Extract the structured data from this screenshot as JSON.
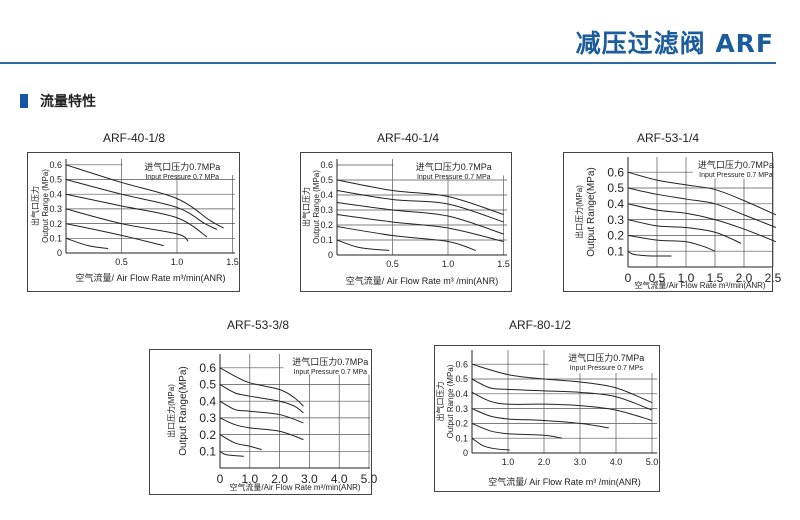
{
  "header": {
    "title": "减压过滤阀 ARF",
    "accent_color": "#1b5c9c"
  },
  "section": {
    "title": "流量特性",
    "marker_color": "#1456a5"
  },
  "chart_data": [
    {
      "type": "line",
      "title": "ARF-40-1/8",
      "annotation": [
        "进气口压力0.7MPa",
        "Input Pressure 0.7 MPa"
      ],
      "xlabel": "空气流量/ Air Flow Rate m³/min(ANR)",
      "ylabel": [
        "出气口压力",
        "Output Range (MPa)"
      ],
      "xlim": [
        0,
        1.5
      ],
      "ylim": [
        0,
        0.6
      ],
      "grid": true,
      "xticks": [
        {
          "v": 0.5,
          "label": "0.5"
        },
        {
          "v": 1.0,
          "label": "1.0"
        },
        {
          "v": 1.5,
          "label": "1.5"
        }
      ],
      "yticks": [
        {
          "v": 0,
          "label": "0"
        },
        {
          "v": 0.1,
          "label": "0.1"
        },
        {
          "v": 0.2,
          "label": "0.2"
        },
        {
          "v": 0.3,
          "label": "0.3"
        },
        {
          "v": 0.4,
          "label": "0.4"
        },
        {
          "v": 0.5,
          "label": "0.5"
        },
        {
          "v": 0.6,
          "label": "0.6"
        }
      ],
      "series": [
        {
          "values": [
            [
              0,
              0.6
            ],
            [
              0.5,
              0.48
            ],
            [
              1.0,
              0.37
            ],
            [
              1.3,
              0.22
            ],
            [
              1.42,
              0.17
            ]
          ]
        },
        {
          "values": [
            [
              0,
              0.5
            ],
            [
              0.5,
              0.4
            ],
            [
              1.0,
              0.31
            ],
            [
              1.25,
              0.2
            ],
            [
              1.36,
              0.16
            ]
          ]
        },
        {
          "values": [
            [
              0,
              0.4
            ],
            [
              0.5,
              0.32
            ],
            [
              1.0,
              0.24
            ],
            [
              1.27,
              0.11
            ]
          ]
        },
        {
          "values": [
            [
              0,
              0.3
            ],
            [
              0.5,
              0.2
            ],
            [
              1.0,
              0.13
            ],
            [
              1.1,
              0.08
            ]
          ]
        },
        {
          "values": [
            [
              0,
              0.2
            ],
            [
              0.5,
              0.12
            ],
            [
              0.88,
              0.05
            ]
          ]
        },
        {
          "values": [
            [
              0,
              0.1
            ],
            [
              0.2,
              0.05
            ],
            [
              0.38,
              0.03
            ]
          ]
        }
      ]
    },
    {
      "type": "line",
      "title": "ARF-40-1/4",
      "annotation": [
        "进气口压力0.7MPa",
        "Input Pressure 0.7 MPa"
      ],
      "xlabel": "空气流量/ Air Flow Rate m³ /min(ANR)",
      "ylabel": [
        "出气口压力",
        "Output Range (MPa)"
      ],
      "xlim": [
        0,
        1.5
      ],
      "ylim": [
        0,
        0.6
      ],
      "grid": true,
      "xticks": [
        {
          "v": 0.5,
          "label": "0.5"
        },
        {
          "v": 1.0,
          "label": "1.0"
        },
        {
          "v": 1.5,
          "label": "1.5"
        }
      ],
      "yticks": [
        {
          "v": 0,
          "label": "0"
        },
        {
          "v": 0.1,
          "label": "0.1"
        },
        {
          "v": 0.2,
          "label": "0.2"
        },
        {
          "v": 0.3,
          "label": "0.3"
        },
        {
          "v": 0.4,
          "label": "0.4"
        },
        {
          "v": 0.5,
          "label": "0.5"
        },
        {
          "v": 0.6,
          "label": "0.6"
        }
      ],
      "series": [
        {
          "values": [
            [
              0,
              0.5
            ],
            [
              0.5,
              0.43
            ],
            [
              1.0,
              0.39
            ],
            [
              1.5,
              0.27
            ]
          ]
        },
        {
          "values": [
            [
              0,
              0.43
            ],
            [
              0.5,
              0.37
            ],
            [
              1.0,
              0.34
            ],
            [
              1.5,
              0.22
            ]
          ]
        },
        {
          "values": [
            [
              0,
              0.35
            ],
            [
              0.5,
              0.3
            ],
            [
              1.0,
              0.26
            ],
            [
              1.5,
              0.14
            ]
          ]
        },
        {
          "values": [
            [
              0,
              0.27
            ],
            [
              0.5,
              0.22
            ],
            [
              1.0,
              0.18
            ],
            [
              1.5,
              0.09
            ]
          ]
        },
        {
          "values": [
            [
              0,
              0.19
            ],
            [
              0.5,
              0.13
            ],
            [
              1.0,
              0.09
            ],
            [
              1.25,
              0.03
            ]
          ]
        },
        {
          "values": [
            [
              0,
              0.1
            ],
            [
              0.2,
              0.05
            ],
            [
              0.47,
              0.03
            ]
          ]
        }
      ]
    },
    {
      "type": "line",
      "title": "ARF-53-1/4",
      "annotation": [
        "进气口压力0.7MPa",
        "Input Pressure 0.7 MPa"
      ],
      "xlabel": "空气流量/Air Flow Rate m³/min(ANR)",
      "ylabel": [
        "出口压力(MPa)",
        "Output Range(MPa)"
      ],
      "xlim": [
        0,
        2.5
      ],
      "ylim": [
        0,
        0.6
      ],
      "grid": true,
      "xticks": [
        {
          "v": 0,
          "label": "0"
        },
        {
          "v": 0.5,
          "label": "0.5"
        },
        {
          "v": 1.0,
          "label": "1.0"
        },
        {
          "v": 1.5,
          "label": "1.5"
        },
        {
          "v": 2.0,
          "label": "2.0"
        },
        {
          "v": 2.5,
          "label": "2.5"
        }
      ],
      "yticks": [
        {
          "v": 0.1,
          "label": "0.1"
        },
        {
          "v": 0.2,
          "label": "0.2"
        },
        {
          "v": 0.3,
          "label": "0.3"
        },
        {
          "v": 0.4,
          "label": "0.4"
        },
        {
          "v": 0.5,
          "label": "0.5"
        },
        {
          "v": 0.6,
          "label": "0.6"
        }
      ],
      "series": [
        {
          "values": [
            [
              0,
              0.6
            ],
            [
              0.5,
              0.55
            ],
            [
              1.0,
              0.52
            ],
            [
              1.5,
              0.49
            ],
            [
              2.0,
              0.42
            ],
            [
              2.55,
              0.33
            ]
          ]
        },
        {
          "values": [
            [
              0,
              0.5
            ],
            [
              0.5,
              0.46
            ],
            [
              1.0,
              0.43
            ],
            [
              1.5,
              0.4
            ],
            [
              2.0,
              0.33
            ],
            [
              2.55,
              0.25
            ]
          ]
        },
        {
          "values": [
            [
              0,
              0.4
            ],
            [
              0.5,
              0.36
            ],
            [
              1.0,
              0.34
            ],
            [
              1.5,
              0.3
            ],
            [
              2.0,
              0.24
            ],
            [
              2.55,
              0.16
            ]
          ]
        },
        {
          "values": [
            [
              0,
              0.3
            ],
            [
              0.5,
              0.26
            ],
            [
              1.0,
              0.25
            ],
            [
              1.5,
              0.22
            ],
            [
              1.95,
              0.15
            ]
          ]
        },
        {
          "values": [
            [
              0,
              0.2
            ],
            [
              0.5,
              0.17
            ],
            [
              1.0,
              0.16
            ],
            [
              1.3,
              0.13
            ],
            [
              1.5,
              0.1
            ]
          ]
        },
        {
          "values": [
            [
              0,
              0.1
            ],
            [
              0.1,
              0.08
            ],
            [
              0.4,
              0.07
            ],
            [
              0.75,
              0.07
            ]
          ]
        }
      ]
    },
    {
      "type": "line",
      "title": "ARF-53-3/8",
      "annotation": [
        "进气口压力0.7MPa",
        "Input Pressure 0.7 MPa"
      ],
      "xlabel": "空气流量/Air Flow Rate m³/min(ANR)",
      "ylabel": [
        "出口压力(MPa)",
        "Output Range(MPa)"
      ],
      "xlim": [
        0,
        5.0
      ],
      "ylim": [
        0,
        0.6
      ],
      "grid": true,
      "xticks": [
        {
          "v": 0,
          "label": "0"
        },
        {
          "v": 1.0,
          "label": "1.0"
        },
        {
          "v": 2.0,
          "label": "2.0"
        },
        {
          "v": 3.0,
          "label": "3.0"
        },
        {
          "v": 4.0,
          "label": "4.0"
        },
        {
          "v": 5.0,
          "label": "5.0"
        }
      ],
      "yticks": [
        {
          "v": 0.1,
          "label": "0.1"
        },
        {
          "v": 0.2,
          "label": "0.2"
        },
        {
          "v": 0.3,
          "label": "0.3"
        },
        {
          "v": 0.4,
          "label": "0.4"
        },
        {
          "v": 0.5,
          "label": "0.5"
        },
        {
          "v": 0.6,
          "label": "0.6"
        }
      ],
      "series": [
        {
          "values": [
            [
              0,
              0.6
            ],
            [
              0.5,
              0.55
            ],
            [
              1.0,
              0.51
            ],
            [
              2.0,
              0.47
            ],
            [
              2.5,
              0.42
            ],
            [
              2.8,
              0.37
            ]
          ]
        },
        {
          "values": [
            [
              0,
              0.5
            ],
            [
              0.5,
              0.45
            ],
            [
              1.0,
              0.43
            ],
            [
              2.0,
              0.4
            ],
            [
              2.5,
              0.37
            ],
            [
              2.8,
              0.33
            ]
          ]
        },
        {
          "values": [
            [
              0,
              0.4
            ],
            [
              0.5,
              0.35
            ],
            [
              1.0,
              0.34
            ],
            [
              2.0,
              0.32
            ],
            [
              2.8,
              0.27
            ]
          ]
        },
        {
          "values": [
            [
              0,
              0.3
            ],
            [
              0.5,
              0.26
            ],
            [
              1.0,
              0.24
            ],
            [
              2.0,
              0.22
            ],
            [
              2.8,
              0.17
            ]
          ]
        },
        {
          "values": [
            [
              0,
              0.2
            ],
            [
              0.5,
              0.15
            ],
            [
              1.0,
              0.13
            ],
            [
              1.4,
              0.11
            ]
          ]
        },
        {
          "values": [
            [
              0,
              0.1
            ],
            [
              0.2,
              0.08
            ],
            [
              0.8,
              0.07
            ]
          ]
        }
      ]
    },
    {
      "type": "line",
      "title": "ARF-80-1/2",
      "annotation": [
        "进气口压力0.7MPa",
        "Input Pressure 0.7 MPs"
      ],
      "xlabel": "空气流量/ Air Flow Rate m³ /min(ANR)",
      "ylabel": [
        "出气口压力",
        "Output Range (MPa)"
      ],
      "xlim": [
        0,
        5.0
      ],
      "ylim": [
        0,
        0.6
      ],
      "grid": true,
      "xticks": [
        {
          "v": 1.0,
          "label": "1.0"
        },
        {
          "v": 2.0,
          "label": "2.0"
        },
        {
          "v": 3.0,
          "label": "3.0"
        },
        {
          "v": 4.0,
          "label": "4.0"
        },
        {
          "v": 5.0,
          "label": "5.0"
        }
      ],
      "yticks": [
        {
          "v": 0,
          "label": "0"
        },
        {
          "v": 0.1,
          "label": "0.1"
        },
        {
          "v": 0.2,
          "label": "0.2"
        },
        {
          "v": 0.3,
          "label": "0.3"
        },
        {
          "v": 0.4,
          "label": "0.4"
        },
        {
          "v": 0.5,
          "label": "0.5"
        },
        {
          "v": 0.6,
          "label": "0.6"
        }
      ],
      "series": [
        {
          "values": [
            [
              0,
              0.6
            ],
            [
              1.0,
              0.53
            ],
            [
              2.0,
              0.5
            ],
            [
              3.0,
              0.48
            ],
            [
              4.0,
              0.44
            ],
            [
              5.0,
              0.34
            ]
          ]
        },
        {
          "values": [
            [
              0,
              0.5
            ],
            [
              0.5,
              0.44
            ],
            [
              1.0,
              0.43
            ],
            [
              2.0,
              0.42
            ],
            [
              3.0,
              0.41
            ],
            [
              4.0,
              0.38
            ],
            [
              5.0,
              0.29
            ]
          ]
        },
        {
          "values": [
            [
              0,
              0.41
            ],
            [
              0.5,
              0.35
            ],
            [
              1.0,
              0.33
            ],
            [
              2.0,
              0.33
            ],
            [
              3.0,
              0.32
            ],
            [
              4.0,
              0.29
            ],
            [
              5.0,
              0.22
            ]
          ]
        },
        {
          "values": [
            [
              0,
              0.3
            ],
            [
              0.5,
              0.25
            ],
            [
              1.0,
              0.23
            ],
            [
              2.0,
              0.22
            ],
            [
              3.0,
              0.2
            ],
            [
              3.8,
              0.17
            ]
          ]
        },
        {
          "values": [
            [
              0,
              0.2
            ],
            [
              0.5,
              0.15
            ],
            [
              1.0,
              0.13
            ],
            [
              2.0,
              0.12
            ],
            [
              2.5,
              0.1
            ]
          ]
        },
        {
          "values": [
            [
              0,
              0.1
            ],
            [
              0.3,
              0.05
            ],
            [
              0.6,
              0.03
            ],
            [
              1.05,
              0.02
            ]
          ]
        }
      ]
    }
  ]
}
